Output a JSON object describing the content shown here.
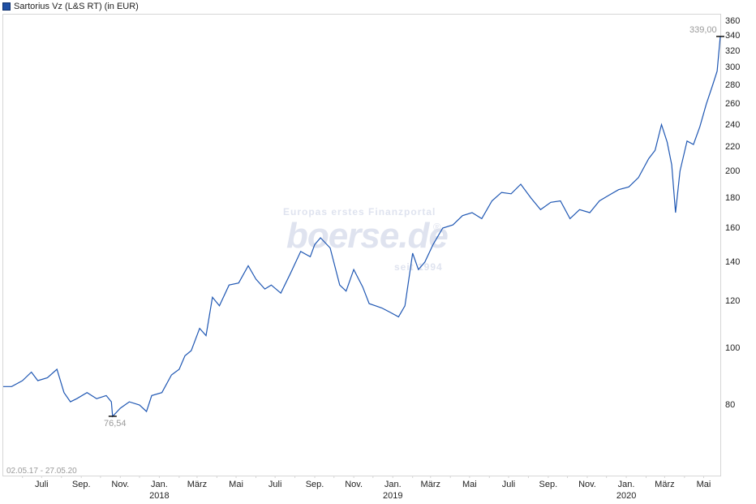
{
  "legend": {
    "label": "Sartorius Vz (L&S RT) (in EUR)",
    "swatch_color": "#1f4fa3"
  },
  "watermark": {
    "tagline": "Europas erstes Finanzportal",
    "brand": "boerse.de",
    "since": "seit 1994",
    "registered": "®"
  },
  "range_label": "02.05.17 - 27.05.20",
  "annotations": {
    "high": "339,00",
    "low": "76,54"
  },
  "colors": {
    "line": "#1f57b3",
    "frame": "#d6d6d6",
    "annotation": "#9a9a9a"
  },
  "chart_data": {
    "type": "line",
    "title": "Sartorius Vz (L&S RT) (in EUR)",
    "xlabel": "",
    "ylabel": "",
    "y_scale": "log",
    "ylim": [
      62,
      365
    ],
    "yticks": [
      80,
      100,
      120,
      140,
      160,
      180,
      200,
      220,
      240,
      260,
      280,
      300,
      320,
      340,
      360
    ],
    "xticks": [
      {
        "label": "Juli",
        "sub": ""
      },
      {
        "label": "Sep.",
        "sub": ""
      },
      {
        "label": "Nov.",
        "sub": ""
      },
      {
        "label": "Jan.",
        "sub": "2018"
      },
      {
        "label": "März",
        "sub": ""
      },
      {
        "label": "Mai",
        "sub": ""
      },
      {
        "label": "Juli",
        "sub": ""
      },
      {
        "label": "Sep.",
        "sub": ""
      },
      {
        "label": "Nov.",
        "sub": ""
      },
      {
        "label": "Jan.",
        "sub": "2019"
      },
      {
        "label": "März",
        "sub": ""
      },
      {
        "label": "Mai",
        "sub": ""
      },
      {
        "label": "Juli",
        "sub": ""
      },
      {
        "label": "Sep.",
        "sub": ""
      },
      {
        "label": "Nov.",
        "sub": ""
      },
      {
        "label": "Jan.",
        "sub": "2020"
      },
      {
        "label": "März",
        "sub": ""
      },
      {
        "label": "Mai",
        "sub": ""
      }
    ],
    "date_range": [
      "02.05.17",
      "27.05.20"
    ],
    "grid": false,
    "legend_position": "top-left",
    "high": {
      "date": "2020-05-27",
      "value": 339.0
    },
    "low": {
      "date": "2017-10-20",
      "value": 76.54
    },
    "series": [
      {
        "name": "Sartorius Vz (L&S RT)",
        "x": [
          "2017-05-02",
          "2017-05-15",
          "2017-06-01",
          "2017-06-15",
          "2017-06-25",
          "2017-07-10",
          "2017-07-25",
          "2017-08-05",
          "2017-08-15",
          "2017-08-25",
          "2017-09-10",
          "2017-09-25",
          "2017-10-10",
          "2017-10-18",
          "2017-10-20",
          "2017-11-01",
          "2017-11-15",
          "2017-12-01",
          "2017-12-12",
          "2017-12-20",
          "2018-01-05",
          "2018-01-20",
          "2018-02-01",
          "2018-02-10",
          "2018-02-20",
          "2018-03-05",
          "2018-03-15",
          "2018-03-25",
          "2018-04-05",
          "2018-04-20",
          "2018-05-05",
          "2018-05-20",
          "2018-06-01",
          "2018-06-15",
          "2018-06-25",
          "2018-07-10",
          "2018-07-25",
          "2018-08-10",
          "2018-08-25",
          "2018-09-01",
          "2018-09-10",
          "2018-09-25",
          "2018-10-10",
          "2018-10-20",
          "2018-11-01",
          "2018-11-15",
          "2018-11-25",
          "2018-12-05",
          "2018-12-15",
          "2018-12-28",
          "2019-01-10",
          "2019-01-20",
          "2019-02-01",
          "2019-02-10",
          "2019-02-20",
          "2019-03-05",
          "2019-03-20",
          "2019-04-05",
          "2019-04-20",
          "2019-05-05",
          "2019-05-20",
          "2019-06-05",
          "2019-06-20",
          "2019-07-05",
          "2019-07-20",
          "2019-08-05",
          "2019-08-20",
          "2019-09-05",
          "2019-09-20",
          "2019-10-05",
          "2019-10-20",
          "2019-11-05",
          "2019-11-20",
          "2019-12-05",
          "2019-12-20",
          "2020-01-05",
          "2020-01-20",
          "2020-02-05",
          "2020-02-15",
          "2020-02-25",
          "2020-03-05",
          "2020-03-12",
          "2020-03-18",
          "2020-03-25",
          "2020-04-05",
          "2020-04-15",
          "2020-04-25",
          "2020-05-05",
          "2020-05-15",
          "2020-05-22",
          "2020-05-26",
          "2020-05-27"
        ],
        "values": [
          86,
          86,
          88,
          91,
          88,
          89,
          92,
          84,
          81,
          82,
          84,
          82,
          83,
          81,
          76.5,
          79,
          81,
          80,
          78,
          83,
          84,
          90,
          92,
          97,
          99,
          108,
          105,
          122,
          118,
          128,
          129,
          138,
          131,
          126,
          128,
          124,
          134,
          146,
          143,
          150,
          154,
          148,
          128,
          125,
          136,
          127,
          119,
          118,
          117,
          115,
          113,
          118,
          145,
          136,
          140,
          150,
          160,
          162,
          168,
          170,
          166,
          178,
          184,
          183,
          190,
          180,
          172,
          177,
          178,
          166,
          172,
          170,
          178,
          182,
          186,
          188,
          195,
          210,
          217,
          240,
          224,
          205,
          170,
          200,
          225,
          222,
          238,
          260,
          280,
          296,
          330,
          339
        ]
      }
    ]
  }
}
